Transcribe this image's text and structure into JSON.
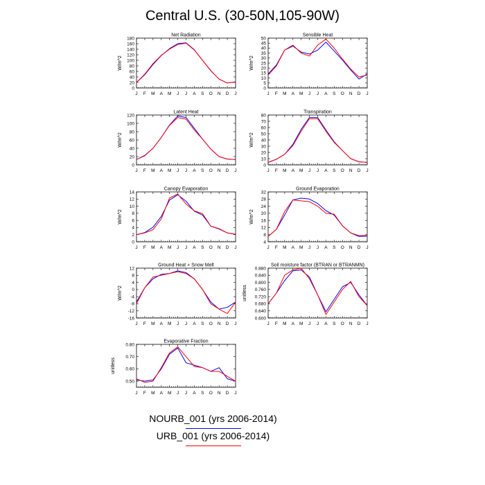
{
  "title": "Central U.S. (30-50N,105-90W)",
  "legend": [
    {
      "label": "NOURB_001 (yrs 2006-2014)",
      "color": "#0000ff"
    },
    {
      "label": "URB_001 (yrs 2006-2014)",
      "color": "#ff0000"
    }
  ],
  "chart_data": [
    {
      "type": "line",
      "title": "Net Radiation",
      "ylabel": "W/m^2",
      "categories": [
        "J",
        "F",
        "M",
        "A",
        "M",
        "J",
        "J",
        "A",
        "S",
        "O",
        "N",
        "D",
        "J"
      ],
      "ylim": [
        0,
        180
      ],
      "yticks": [
        "0",
        "20",
        "40",
        "60",
        "80",
        "100",
        "120",
        "140",
        "160",
        "180"
      ],
      "series": [
        {
          "name": "NOURB_001 (yrs 2006-2014)",
          "color": "#0000ff",
          "values": [
            20,
            48,
            85,
            117,
            142,
            160,
            163,
            138,
            100,
            62,
            32,
            18,
            22
          ]
        },
        {
          "name": "URB_001 (yrs 2006-2014)",
          "color": "#ff0000",
          "values": [
            20,
            50,
            88,
            118,
            140,
            157,
            162,
            137,
            100,
            63,
            32,
            18,
            22
          ]
        }
      ]
    },
    {
      "type": "line",
      "title": "Sensible Heat",
      "ylabel": "W/m^2",
      "categories": [
        "J",
        "F",
        "M",
        "A",
        "M",
        "J",
        "J",
        "A",
        "S",
        "O",
        "N",
        "D",
        "J"
      ],
      "ylim": [
        0,
        50
      ],
      "yticks": [
        "0",
        "5",
        "10",
        "15",
        "20",
        "25",
        "30",
        "35",
        "40",
        "45",
        "50"
      ],
      "series": [
        {
          "name": "NOURB_001 (yrs 2006-2014)",
          "color": "#0000ff",
          "values": [
            14,
            23,
            38,
            42,
            36,
            34,
            38,
            46,
            37,
            28,
            18,
            9,
            14
          ]
        },
        {
          "name": "URB_001 (yrs 2006-2014)",
          "color": "#ff0000",
          "values": [
            13,
            22,
            38,
            43,
            35,
            32,
            43,
            49,
            40,
            29,
            19,
            11,
            13
          ]
        }
      ]
    },
    {
      "type": "line",
      "title": "Latent Heat",
      "ylabel": "W/m^2",
      "categories": [
        "J",
        "F",
        "M",
        "A",
        "M",
        "J",
        "J",
        "A",
        "S",
        "O",
        "N",
        "D",
        "J"
      ],
      "ylim": [
        0,
        120
      ],
      "yticks": [
        "0",
        "20",
        "40",
        "60",
        "80",
        "100",
        "120"
      ],
      "series": [
        {
          "name": "NOURB_001 (yrs 2006-2014)",
          "color": "#0000ff",
          "values": [
            13,
            22,
            40,
            66,
            96,
            118,
            114,
            88,
            62,
            38,
            20,
            14,
            13
          ]
        },
        {
          "name": "URB_001 (yrs 2006-2014)",
          "color": "#ff0000",
          "values": [
            13,
            23,
            40,
            66,
            95,
            114,
            110,
            84,
            62,
            38,
            20,
            14,
            13
          ]
        }
      ]
    },
    {
      "type": "line",
      "title": "Transpiration",
      "ylabel": "W/m^2",
      "categories": [
        "J",
        "F",
        "M",
        "A",
        "M",
        "J",
        "J",
        "A",
        "S",
        "O",
        "N",
        "D",
        "J"
      ],
      "ylim": [
        0,
        80
      ],
      "yticks": [
        "0",
        "10",
        "20",
        "30",
        "40",
        "50",
        "60",
        "70",
        "80"
      ],
      "series": [
        {
          "name": "NOURB_001 (yrs 2006-2014)",
          "color": "#0000ff",
          "values": [
            4,
            9,
            17,
            33,
            57,
            76,
            76,
            56,
            37,
            23,
            10,
            5,
            4
          ]
        },
        {
          "name": "URB_001 (yrs 2006-2014)",
          "color": "#ff0000",
          "values": [
            4,
            9,
            17,
            31,
            54,
            74,
            74,
            54,
            36,
            23,
            10,
            5,
            4
          ]
        }
      ]
    },
    {
      "type": "line",
      "title": "Canopy Evaporation",
      "ylabel": "W/m^2",
      "categories": [
        "J",
        "F",
        "M",
        "A",
        "M",
        "J",
        "J",
        "A",
        "S",
        "O",
        "N",
        "D",
        "J"
      ],
      "ylim": [
        0,
        14
      ],
      "yticks": [
        "0",
        "2",
        "4",
        "6",
        "8",
        "10",
        "12",
        "14"
      ],
      "series": [
        {
          "name": "NOURB_001 (yrs 2006-2014)",
          "color": "#0000ff",
          "values": [
            2.0,
            2.6,
            4.1,
            7.1,
            11.7,
            13.2,
            11.4,
            8.6,
            7.5,
            4.4,
            3.6,
            2.5,
            2.1
          ]
        },
        {
          "name": "URB_001 (yrs 2006-2014)",
          "color": "#ff0000",
          "values": [
            2.0,
            2.5,
            3.4,
            6.4,
            12.3,
            13.4,
            10.6,
            8.7,
            7.9,
            4.4,
            3.7,
            2.5,
            2.1
          ]
        }
      ]
    },
    {
      "type": "line",
      "title": "Ground Evaporation",
      "ylabel": "W/m^2",
      "categories": [
        "J",
        "F",
        "M",
        "A",
        "M",
        "J",
        "J",
        "A",
        "S",
        "O",
        "N",
        "D",
        "J"
      ],
      "ylim": [
        4,
        32
      ],
      "yticks": [
        "4",
        "8",
        "12",
        "16",
        "20",
        "24",
        "28",
        "32"
      ],
      "series": [
        {
          "name": "NOURB_001 (yrs 2006-2014)",
          "color": "#0000ff",
          "values": [
            7,
            11,
            19,
            27.5,
            28.5,
            28,
            25.5,
            21.5,
            19,
            13,
            9,
            7,
            7.2
          ]
        },
        {
          "name": "URB_001 (yrs 2006-2014)",
          "color": "#ff0000",
          "values": [
            7,
            11,
            21,
            27.5,
            27,
            26.5,
            24,
            20,
            19.5,
            13,
            9,
            7.5,
            7.5
          ]
        }
      ]
    },
    {
      "type": "line",
      "title": "Ground Heat + Snow Melt",
      "ylabel": "W/m^2",
      "categories": [
        "J",
        "F",
        "M",
        "A",
        "M",
        "J",
        "J",
        "A",
        "S",
        "O",
        "N",
        "D",
        "J"
      ],
      "ylim": [
        -16,
        12
      ],
      "yticks": [
        "-16",
        "-12",
        "-8",
        "-4",
        "0",
        "4",
        "8",
        "12"
      ],
      "series": [
        {
          "name": "NOURB_001 (yrs 2006-2014)",
          "color": "#0000ff",
          "values": [
            -7,
            1,
            6,
            8.5,
            9,
            10.5,
            9.5,
            6,
            0,
            -7,
            -11,
            -10,
            -7
          ]
        },
        {
          "name": "URB_001 (yrs 2006-2014)",
          "color": "#ff0000",
          "values": [
            -8,
            1,
            7,
            8,
            9,
            10,
            9,
            6,
            0,
            -8,
            -11,
            -13.5,
            -7
          ]
        }
      ]
    },
    {
      "type": "line",
      "title": "Soil moisture factor (BTRAN or BTRANMN)",
      "ylabel": "unitless",
      "categories": [
        "J",
        "F",
        "M",
        "A",
        "M",
        "J",
        "J",
        "A",
        "S",
        "O",
        "N",
        "D",
        "J"
      ],
      "ylim": [
        0.6,
        0.88
      ],
      "yticks": [
        "0.600",
        "0.640",
        "0.680",
        "0.720",
        "0.760",
        "0.800",
        "0.840",
        "0.880"
      ],
      "series": [
        {
          "name": "NOURB_001 (yrs 2006-2014)",
          "color": "#0000ff",
          "values": [
            0.68,
            0.74,
            0.81,
            0.865,
            0.87,
            0.83,
            0.73,
            0.635,
            0.705,
            0.775,
            0.8,
            0.73,
            0.67
          ]
        },
        {
          "name": "URB_001 (yrs 2006-2014)",
          "color": "#ff0000",
          "values": [
            0.68,
            0.74,
            0.84,
            0.87,
            0.88,
            0.82,
            0.73,
            0.62,
            0.69,
            0.76,
            0.805,
            0.72,
            0.67
          ]
        }
      ]
    },
    {
      "type": "line",
      "title": "Evaporative Fraction",
      "ylabel": "unitless",
      "categories": [
        "J",
        "F",
        "M",
        "A",
        "M",
        "J",
        "J",
        "A",
        "S",
        "O",
        "N",
        "D",
        "J"
      ],
      "ylim": [
        0.45,
        0.8
      ],
      "yticks": [
        "0.50",
        "0.60",
        "0.70",
        "0.80"
      ],
      "series": [
        {
          "name": "NOURB_001 (yrs 2006-2014)",
          "color": "#0000ff",
          "values": [
            0.51,
            0.5,
            0.51,
            0.6,
            0.72,
            0.77,
            0.65,
            0.63,
            0.61,
            0.58,
            0.61,
            0.52,
            0.5
          ]
        },
        {
          "name": "URB_001 (yrs 2006-2014)",
          "color": "#ff0000",
          "values": [
            0.52,
            0.49,
            0.5,
            0.61,
            0.73,
            0.78,
            0.7,
            0.62,
            0.61,
            0.58,
            0.58,
            0.54,
            0.5
          ]
        }
      ]
    }
  ]
}
